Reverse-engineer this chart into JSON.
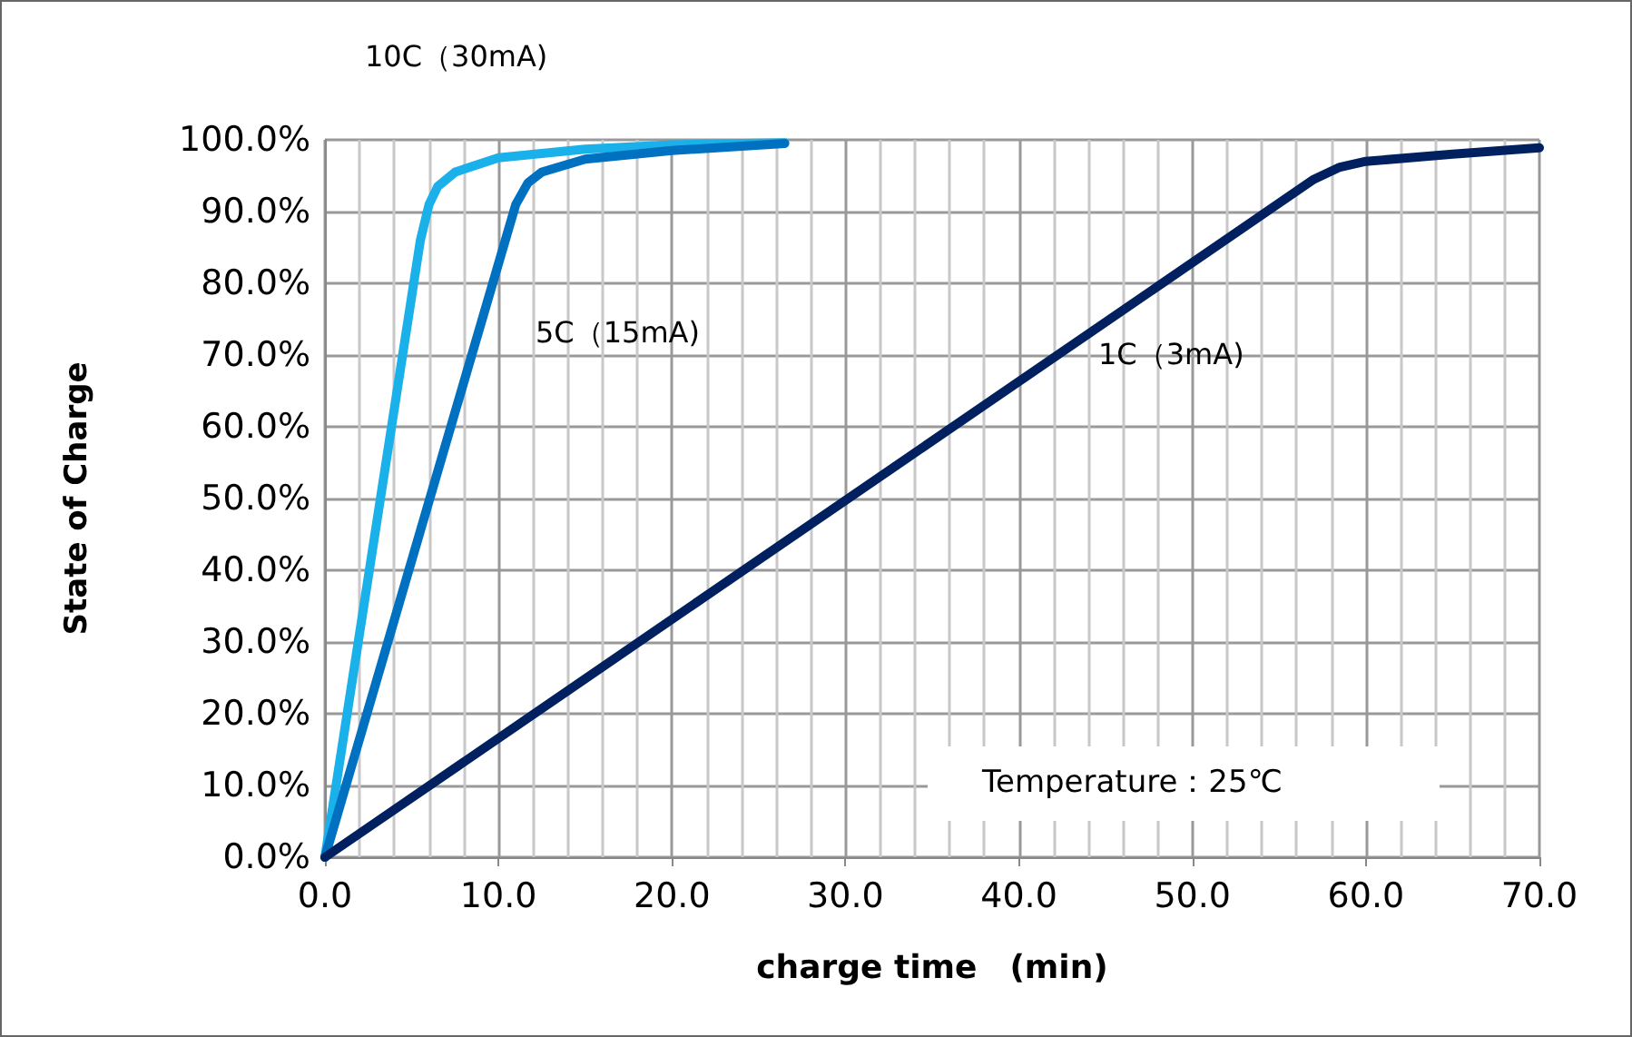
{
  "chart_data": {
    "type": "line",
    "xlabel": "charge time　(min)",
    "ylabel": "State of Charge",
    "xlim": [
      0,
      70
    ],
    "ylim": [
      0,
      100
    ],
    "xticks": [
      {
        "value": 0,
        "label": "0.0"
      },
      {
        "value": 10,
        "label": "10.0"
      },
      {
        "value": 20,
        "label": "20.0"
      },
      {
        "value": 30,
        "label": "30.0"
      },
      {
        "value": 40,
        "label": "40.0"
      },
      {
        "value": 50,
        "label": "50.0"
      },
      {
        "value": 60,
        "label": "60.0"
      },
      {
        "value": 70,
        "label": "70.0"
      }
    ],
    "yticks": [
      {
        "value": 0,
        "label": "0.0%"
      },
      {
        "value": 10,
        "label": "10.0%"
      },
      {
        "value": 20,
        "label": "20.0%"
      },
      {
        "value": 30,
        "label": "30.0%"
      },
      {
        "value": 40,
        "label": "40.0%"
      },
      {
        "value": 50,
        "label": "50.0%"
      },
      {
        "value": 60,
        "label": "60.0%"
      },
      {
        "value": 70,
        "label": "70.0%"
      },
      {
        "value": 80,
        "label": "80.0%"
      },
      {
        "value": 90,
        "label": "90.0%"
      },
      {
        "value": 100,
        "label": "100.0%"
      }
    ],
    "grid": true,
    "marker": "none",
    "line_style": "solid",
    "series": [
      {
        "color": "#1ab0ea",
        "x": [
          0,
          5.5,
          6,
          6.5,
          7.5,
          10,
          15,
          20,
          26.5
        ],
        "values": [
          0,
          86,
          91,
          93.5,
          95.5,
          97.5,
          98.7,
          99.3,
          99.6
        ]
      },
      {
        "color": "#0070c0",
        "x": [
          0,
          11,
          11.7,
          12.5,
          15,
          20,
          26.5
        ],
        "values": [
          0,
          91,
          94,
          95.5,
          97.3,
          98.5,
          99.5
        ]
      },
      {
        "color": "#002060",
        "x": [
          0,
          57,
          58.5,
          60,
          65,
          70
        ],
        "values": [
          0,
          94.5,
          96.2,
          97,
          98,
          98.9
        ]
      }
    ],
    "annotations": [
      "10C（30mA)",
      "5C（15mA)",
      "1C（3mA)",
      "Temperature：25℃"
    ]
  }
}
